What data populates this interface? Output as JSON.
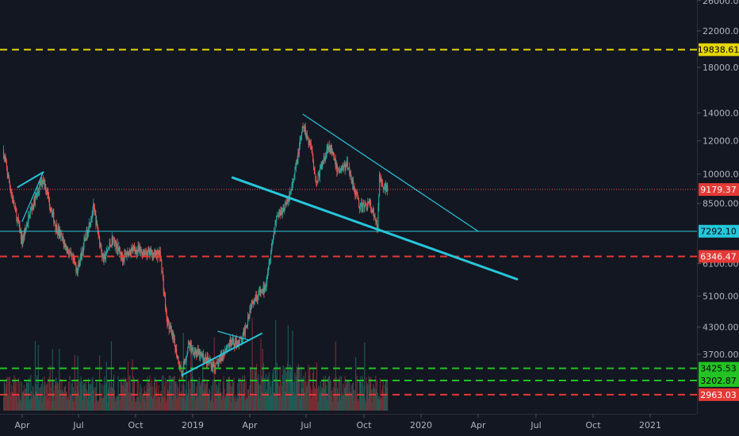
{
  "chart_data": {
    "type": "candlestick",
    "title": "",
    "instrument": "",
    "scale": "log",
    "grid": false,
    "colors": {
      "background": "#131722",
      "up": "#26a69a",
      "down": "#ef5350",
      "volume_up": "#1f5c56",
      "volume_down": "#7a2b33",
      "axis_text": "#b2b5be",
      "trendline": "#26c6da",
      "yellow_level": "#e6d700",
      "red_level": "#e53935",
      "green_level": "#22c322",
      "current_price_line": "#ef5350"
    },
    "y_ticks": [
      "3700.00",
      "4300.00",
      "5100.00",
      "6100.00",
      "8500.00",
      "10000.00",
      "12000.00",
      "14000.00",
      "18000.00",
      "22000.00",
      "26000.00"
    ],
    "x_ticks": [
      "Apr",
      "Jul",
      "Oct",
      "2019",
      "Apr",
      "Jul",
      "Oct",
      "2020",
      "Apr",
      "Jul",
      "Oct",
      "2021"
    ],
    "price_levels": [
      {
        "value": 19838.61,
        "label": "19838.61",
        "style": "dashed",
        "color": "yellow"
      },
      {
        "value": 9179.37,
        "label": "9179.37",
        "style": "dotted",
        "color": "red",
        "current": true
      },
      {
        "value": 7292.1,
        "label": "7292.10",
        "style": "solid",
        "color": "cyan"
      },
      {
        "value": 6346.47,
        "label": "6346.47",
        "style": "dashed",
        "color": "red"
      },
      {
        "value": 3425.53,
        "label": "3425.53",
        "style": "dashed",
        "color": "green"
      },
      {
        "value": 3202.87,
        "label": "3202.87",
        "style": "dashed",
        "color": "green"
      },
      {
        "value": 2963.03,
        "label": "2963.03",
        "style": "dashed",
        "color": "red"
      }
    ],
    "trendlines": [
      {
        "from": [
          "2018-03-25",
          9300
        ],
        "to": [
          "2018-05-05",
          10100
        ]
      },
      {
        "from": [
          "2018-04-01",
          7700
        ],
        "to": [
          "2018-05-05",
          10100
        ]
      },
      {
        "from": [
          "2019-06-26",
          13900
        ],
        "to": [
          "2020-04-01",
          7292
        ]
      },
      {
        "from": [
          "2019-03-05",
          9800
        ],
        "to": [
          "2020-06-01",
          5600
        ]
      },
      {
        "from": [
          "2018-12-15",
          3300
        ],
        "to": [
          "2019-04-20",
          4150
        ]
      },
      {
        "from": [
          "2019-02-10",
          4200
        ],
        "to": [
          "2019-04-01",
          4000
        ]
      }
    ],
    "series": [
      {
        "date": "2018-03-01",
        "value": 11400
      },
      {
        "date": "2018-03-15",
        "value": 8900
      },
      {
        "date": "2018-04-01",
        "value": 6900
      },
      {
        "date": "2018-04-15",
        "value": 8200
      },
      {
        "date": "2018-05-05",
        "value": 9800
      },
      {
        "date": "2018-05-25",
        "value": 7500
      },
      {
        "date": "2018-06-15",
        "value": 6500
      },
      {
        "date": "2018-06-29",
        "value": 5900
      },
      {
        "date": "2018-07-25",
        "value": 8300
      },
      {
        "date": "2018-08-10",
        "value": 6200
      },
      {
        "date": "2018-08-25",
        "value": 7000
      },
      {
        "date": "2018-09-10",
        "value": 6300
      },
      {
        "date": "2018-09-25",
        "value": 6600
      },
      {
        "date": "2018-10-15",
        "value": 6500
      },
      {
        "date": "2018-11-10",
        "value": 6400
      },
      {
        "date": "2018-11-20",
        "value": 4500
      },
      {
        "date": "2018-12-01",
        "value": 4000
      },
      {
        "date": "2018-12-15",
        "value": 3300
      },
      {
        "date": "2018-12-25",
        "value": 3900
      },
      {
        "date": "2019-01-10",
        "value": 3700
      },
      {
        "date": "2019-02-07",
        "value": 3450
      },
      {
        "date": "2019-02-25",
        "value": 3900
      },
      {
        "date": "2019-03-20",
        "value": 4000
      },
      {
        "date": "2019-04-05",
        "value": 5000
      },
      {
        "date": "2019-04-25",
        "value": 5300
      },
      {
        "date": "2019-05-14",
        "value": 7900
      },
      {
        "date": "2019-05-31",
        "value": 8500
      },
      {
        "date": "2019-06-10",
        "value": 9500
      },
      {
        "date": "2019-06-26",
        "value": 13000
      },
      {
        "date": "2019-07-10",
        "value": 11500
      },
      {
        "date": "2019-07-17",
        "value": 9500
      },
      {
        "date": "2019-08-06",
        "value": 11800
      },
      {
        "date": "2019-08-20",
        "value": 10200
      },
      {
        "date": "2019-09-05",
        "value": 10500
      },
      {
        "date": "2019-09-25",
        "value": 8300
      },
      {
        "date": "2019-10-10",
        "value": 8500
      },
      {
        "date": "2019-10-23",
        "value": 7400
      },
      {
        "date": "2019-10-26",
        "value": 9900
      },
      {
        "date": "2019-11-05",
        "value": 9200
      },
      {
        "date": "2019-11-08",
        "value": 9179.37
      }
    ]
  }
}
